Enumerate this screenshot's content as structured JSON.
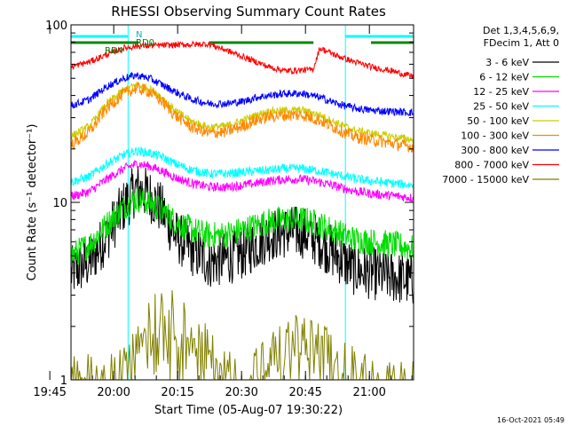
{
  "chart_data": {
    "type": "line",
    "title": "RHESSI Observing Summary Count Rates",
    "xlabel": "Start Time (05-Aug-07 19:30:22)",
    "ylabel": "Count Rate (s⁻¹ detector⁻¹)",
    "y_scale": "log",
    "ylim": [
      1,
      100
    ],
    "xlim_minutes": [
      19.6,
      100.0
    ],
    "x_ticks": [
      {
        "label": "19:45",
        "minutes": 14.63
      },
      {
        "label": "20:00",
        "minutes": 29.63
      },
      {
        "label": "20:15",
        "minutes": 44.63
      },
      {
        "label": "20:30",
        "minutes": 59.63
      },
      {
        "label": "20:45",
        "minutes": 74.63
      },
      {
        "label": "21:00",
        "minutes": 89.63
      }
    ],
    "y_ticks": [
      {
        "label": "1",
        "value": 1
      },
      {
        "label": "10",
        "value": 10
      },
      {
        "label": "100",
        "value": 100
      }
    ],
    "legend_header": [
      "Det 1,3,4,5,6,9,",
      "FDecim 1, Att 0"
    ],
    "legend_position": "right",
    "annotations": {
      "night_label": "N",
      "rd_labels": [
        "RD4",
        "RD0"
      ],
      "timestamp": "16-Oct-2021 05:49"
    },
    "day_intervals": [
      [
        19.6,
        35.5
      ],
      [
        52.0,
        76.5
      ],
      [
        90.0,
        100.0
      ]
    ],
    "night_intervals": [
      [
        15.0,
        33.0
      ],
      [
        84.0,
        100.0
      ]
    ],
    "series": [
      {
        "name": "3 - 6 keV",
        "color": "#000000",
        "points": [
          [
            19.6,
            4.0
          ],
          [
            24,
            4.6
          ],
          [
            28,
            6.5
          ],
          [
            32,
            9.5
          ],
          [
            35,
            12.0
          ],
          [
            38,
            11.0
          ],
          [
            41,
            9.0
          ],
          [
            44,
            6.5
          ],
          [
            48,
            5.4
          ],
          [
            52,
            4.6
          ],
          [
            56,
            4.8
          ],
          [
            60,
            5.2
          ],
          [
            63,
            5.8
          ],
          [
            66,
            6.5
          ],
          [
            70,
            6.8
          ],
          [
            74,
            6.8
          ],
          [
            78,
            6.0
          ],
          [
            82,
            5.0
          ],
          [
            86,
            4.2
          ],
          [
            90,
            4.0
          ],
          [
            95,
            3.8
          ],
          [
            100,
            3.6
          ]
        ]
      },
      {
        "name": "6 - 12 keV",
        "color": "#00dd00",
        "points": [
          [
            19.6,
            5.0
          ],
          [
            24,
            5.8
          ],
          [
            28,
            7.5
          ],
          [
            32,
            9.5
          ],
          [
            35,
            10.5
          ],
          [
            38,
            10.0
          ],
          [
            41,
            9.0
          ],
          [
            44,
            7.8
          ],
          [
            48,
            7.0
          ],
          [
            52,
            6.5
          ],
          [
            56,
            6.6
          ],
          [
            60,
            7.0
          ],
          [
            63,
            7.4
          ],
          [
            66,
            7.8
          ],
          [
            70,
            8.0
          ],
          [
            74,
            8.0
          ],
          [
            78,
            7.5
          ],
          [
            82,
            6.8
          ],
          [
            86,
            6.2
          ],
          [
            90,
            6.0
          ],
          [
            95,
            5.8
          ],
          [
            100,
            5.5
          ]
        ]
      },
      {
        "name": "12 - 25 keV",
        "color": "#ff00ff",
        "points": [
          [
            19.6,
            10.8
          ],
          [
            24,
            11.5
          ],
          [
            28,
            13.5
          ],
          [
            32,
            15.5
          ],
          [
            35,
            16.5
          ],
          [
            38,
            16.0
          ],
          [
            41,
            15.0
          ],
          [
            44,
            13.8
          ],
          [
            48,
            12.8
          ],
          [
            52,
            12.2
          ],
          [
            56,
            12.2
          ],
          [
            60,
            12.5
          ],
          [
            63,
            12.8
          ],
          [
            66,
            13.2
          ],
          [
            70,
            13.5
          ],
          [
            74,
            13.5
          ],
          [
            78,
            13.0
          ],
          [
            82,
            12.3
          ],
          [
            86,
            11.6
          ],
          [
            90,
            11.2
          ],
          [
            95,
            10.9
          ],
          [
            100,
            10.6
          ]
        ]
      },
      {
        "name": "25 - 50 keV",
        "color": "#00ffff",
        "points": [
          [
            19.6,
            13.0
          ],
          [
            24,
            14.0
          ],
          [
            28,
            16.5
          ],
          [
            32,
            18.5
          ],
          [
            35,
            19.5
          ],
          [
            38,
            19.0
          ],
          [
            41,
            18.0
          ],
          [
            44,
            16.5
          ],
          [
            48,
            15.2
          ],
          [
            52,
            14.5
          ],
          [
            56,
            14.5
          ],
          [
            60,
            14.8
          ],
          [
            63,
            15.0
          ],
          [
            66,
            15.2
          ],
          [
            70,
            15.5
          ],
          [
            74,
            15.5
          ],
          [
            78,
            15.0
          ],
          [
            82,
            14.3
          ],
          [
            86,
            13.6
          ],
          [
            90,
            13.2
          ],
          [
            95,
            12.8
          ],
          [
            100,
            12.5
          ]
        ]
      },
      {
        "name": "50 - 100 keV",
        "color": "#cccc00",
        "points": [
          [
            19.6,
            23.5
          ],
          [
            24,
            27.0
          ],
          [
            28,
            36.0
          ],
          [
            32,
            43.0
          ],
          [
            35,
            46.0
          ],
          [
            38,
            44.0
          ],
          [
            41,
            39.0
          ],
          [
            44,
            33.0
          ],
          [
            48,
            28.5
          ],
          [
            52,
            26.5
          ],
          [
            56,
            27.0
          ],
          [
            60,
            29.0
          ],
          [
            63,
            31.0
          ],
          [
            66,
            32.5
          ],
          [
            70,
            33.0
          ],
          [
            74,
            33.0
          ],
          [
            78,
            31.0
          ],
          [
            82,
            28.0
          ],
          [
            86,
            25.5
          ],
          [
            90,
            24.5
          ],
          [
            95,
            23.5
          ],
          [
            100,
            22.5
          ]
        ]
      },
      {
        "name": "100 - 300 keV",
        "color": "#ff8800",
        "points": [
          [
            19.6,
            21.0
          ],
          [
            24,
            25.0
          ],
          [
            28,
            34.0
          ],
          [
            32,
            41.0
          ],
          [
            35,
            44.0
          ],
          [
            38,
            42.0
          ],
          [
            41,
            37.0
          ],
          [
            44,
            31.0
          ],
          [
            48,
            26.5
          ],
          [
            52,
            24.5
          ],
          [
            56,
            25.0
          ],
          [
            60,
            27.0
          ],
          [
            63,
            29.0
          ],
          [
            66,
            30.5
          ],
          [
            70,
            31.0
          ],
          [
            74,
            31.0
          ],
          [
            78,
            29.0
          ],
          [
            82,
            26.0
          ],
          [
            86,
            23.5
          ],
          [
            90,
            22.5
          ],
          [
            95,
            21.5
          ],
          [
            100,
            20.5
          ]
        ]
      },
      {
        "name": "300 - 800 keV",
        "color": "#0000ff",
        "points": [
          [
            19.6,
            35.0
          ],
          [
            24,
            38.0
          ],
          [
            28,
            45.0
          ],
          [
            32,
            50.0
          ],
          [
            35,
            52.0
          ],
          [
            38,
            50.0
          ],
          [
            41,
            46.0
          ],
          [
            44,
            42.0
          ],
          [
            48,
            38.0
          ],
          [
            52,
            36.0
          ],
          [
            56,
            36.0
          ],
          [
            60,
            37.0
          ],
          [
            63,
            39.0
          ],
          [
            66,
            40.0
          ],
          [
            70,
            41.0
          ],
          [
            74,
            41.0
          ],
          [
            78,
            39.0
          ],
          [
            82,
            36.0
          ],
          [
            86,
            34.0
          ],
          [
            90,
            33.0
          ],
          [
            95,
            32.5
          ],
          [
            100,
            32.0
          ]
        ]
      },
      {
        "name": "800 - 7000 keV",
        "color": "#ff0000",
        "points": [
          [
            19.6,
            58.0
          ],
          [
            24,
            62.0
          ],
          [
            28,
            68.0
          ],
          [
            32,
            74.0
          ],
          [
            35.4,
            76.0
          ],
          [
            52.0,
            78.0
          ],
          [
            56,
            72.0
          ],
          [
            60,
            66.0
          ],
          [
            63,
            62.0
          ],
          [
            66,
            58.0
          ],
          [
            70,
            55.0
          ],
          [
            76.4,
            56.0
          ],
          [
            78,
            74.0
          ],
          [
            82,
            67.0
          ],
          [
            86,
            62.0
          ],
          [
            90,
            58.0
          ],
          [
            95,
            55.0
          ],
          [
            100,
            51.0
          ]
        ]
      },
      {
        "name": "7000 - 15000 keV",
        "color": "#808000",
        "points": [
          [
            19.6,
            1.0
          ],
          [
            30,
            1.0
          ],
          [
            33,
            1.6
          ],
          [
            35,
            1.9
          ],
          [
            38,
            2.4
          ],
          [
            41,
            2.6
          ],
          [
            44,
            2.2
          ],
          [
            47,
            1.9
          ],
          [
            50,
            1.6
          ],
          [
            54,
            1.2
          ],
          [
            58,
            1.0
          ],
          [
            62,
            1.1
          ],
          [
            66,
            1.3
          ],
          [
            70,
            1.6
          ],
          [
            74,
            1.7
          ],
          [
            78,
            1.5
          ],
          [
            82,
            1.3
          ],
          [
            86,
            1.1
          ],
          [
            90,
            1.0
          ],
          [
            100,
            1.0
          ]
        ]
      }
    ]
  }
}
